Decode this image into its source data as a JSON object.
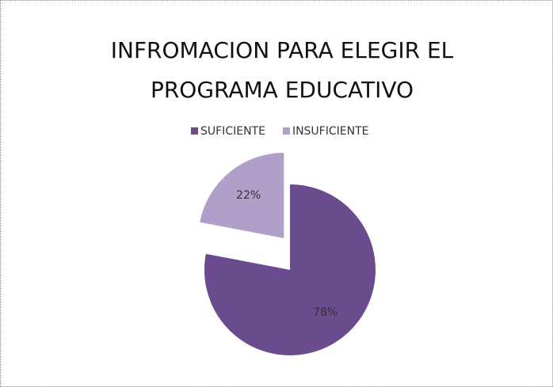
{
  "chart_data": {
    "type": "pie",
    "title": "INFROMACION PARA ELEGIR EL PROGRAMA EDUCATIVO",
    "categories": [
      "SUFICIENTE",
      "INSUFICIENTE"
    ],
    "values": [
      78,
      22
    ],
    "value_labels": [
      "78%",
      "22%"
    ],
    "colors": [
      "#6a4c8e",
      "#b0a0c9"
    ],
    "legend": "top"
  }
}
